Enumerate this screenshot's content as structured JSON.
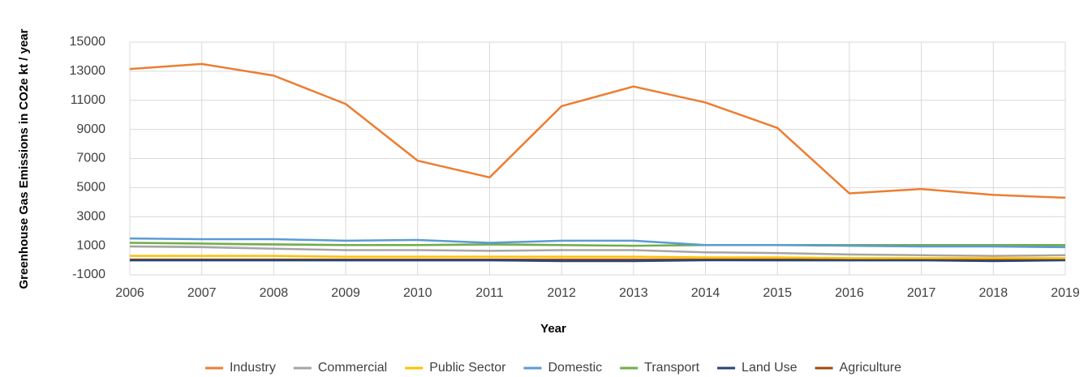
{
  "chart_data": {
    "type": "line",
    "y_label": "Greenhouse Gas Emissions in CO2e kt / year",
    "x_label": "Year",
    "x": [
      2006,
      2007,
      2008,
      2009,
      2010,
      2011,
      2012,
      2013,
      2014,
      2015,
      2016,
      2017,
      2018,
      2019
    ],
    "xlim": [
      2006,
      2019
    ],
    "xticks": [
      2006,
      2007,
      2008,
      2009,
      2010,
      2011,
      2012,
      2013,
      2014,
      2015,
      2016,
      2017,
      2018,
      2019
    ],
    "ylim": [
      -1000,
      15000
    ],
    "yticks": [
      -1000,
      1000,
      3000,
      5000,
      7000,
      9000,
      11000,
      13000,
      15000
    ],
    "grid": true,
    "legend": "bottom",
    "series": [
      {
        "name": "Industry",
        "color": "#ed7d31",
        "values": [
          13150,
          13500,
          12700,
          10750,
          6850,
          5700,
          10600,
          11950,
          10850,
          9100,
          4600,
          4900,
          4500,
          4300
        ]
      },
      {
        "name": "Commercial",
        "color": "#a5a5a5",
        "values": [
          950,
          900,
          800,
          700,
          700,
          650,
          700,
          700,
          550,
          500,
          400,
          350,
          300,
          350
        ]
      },
      {
        "name": "Public Sector",
        "color": "#ffc000",
        "values": [
          300,
          300,
          300,
          250,
          250,
          250,
          250,
          250,
          200,
          200,
          150,
          150,
          150,
          150
        ]
      },
      {
        "name": "Domestic",
        "color": "#5b9bd5",
        "values": [
          1500,
          1450,
          1450,
          1350,
          1400,
          1200,
          1350,
          1350,
          1050,
          1050,
          1000,
          950,
          950,
          900
        ]
      },
      {
        "name": "Transport",
        "color": "#70ad47",
        "values": [
          1200,
          1150,
          1100,
          1050,
          1050,
          1100,
          1050,
          1000,
          1050,
          1050,
          1050,
          1050,
          1050,
          1050
        ]
      },
      {
        "name": "Land Use",
        "color": "#264478",
        "values": [
          0,
          0,
          0,
          0,
          0,
          0,
          -50,
          -50,
          0,
          0,
          0,
          0,
          -50,
          0
        ]
      },
      {
        "name": "Agriculture",
        "color": "#9e480e",
        "values": [
          50,
          50,
          50,
          50,
          50,
          50,
          50,
          50,
          50,
          50,
          50,
          50,
          50,
          50
        ]
      }
    ]
  }
}
